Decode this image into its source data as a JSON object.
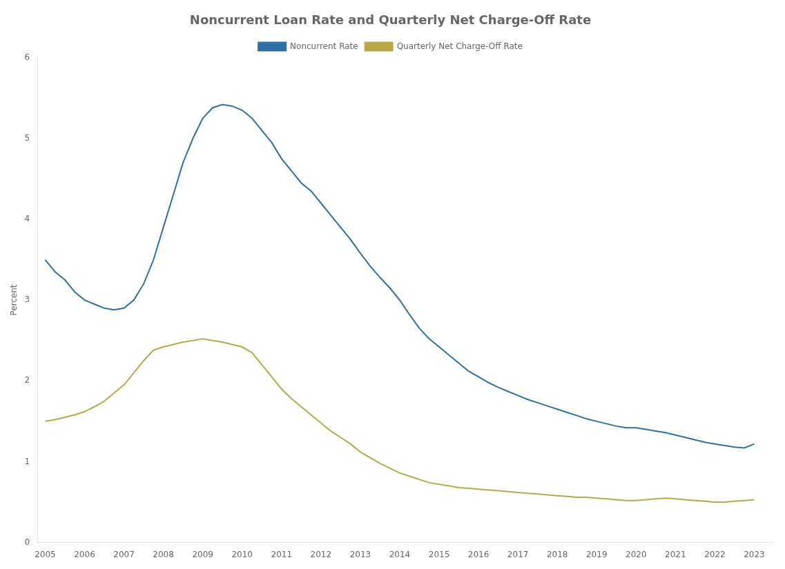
{
  "chart_data": {
    "type": "line",
    "title": "Noncurrent Loan Rate and Quarterly Net Charge-Off Rate",
    "y_label": "Percent",
    "x": [
      2005.0,
      2005.25,
      2005.5,
      2005.75,
      2006.0,
      2006.25,
      2006.5,
      2006.75,
      2007.0,
      2007.25,
      2007.5,
      2007.75,
      2008.0,
      2008.25,
      2008.5,
      2008.75,
      2009.0,
      2009.25,
      2009.5,
      2009.75,
      2010.0,
      2010.25,
      2010.5,
      2010.75,
      2011.0,
      2011.25,
      2011.5,
      2011.75,
      2012.0,
      2012.25,
      2012.5,
      2012.75,
      2013.0,
      2013.25,
      2013.5,
      2013.75,
      2014.0,
      2014.25,
      2014.5,
      2014.75,
      2015.0,
      2015.25,
      2015.5,
      2015.75,
      2016.0,
      2016.25,
      2016.5,
      2016.75,
      2017.0,
      2017.25,
      2017.5,
      2017.75,
      2018.0,
      2018.25,
      2018.5,
      2018.75,
      2019.0,
      2019.25,
      2019.5,
      2019.75,
      2020.0,
      2020.25,
      2020.5,
      2020.75,
      2021.0,
      2021.25,
      2021.5,
      2021.75,
      2022.0,
      2022.25,
      2022.5,
      2022.75,
      2023.0
    ],
    "series": [
      {
        "name": "Noncurrent Rate",
        "color": "#2e6fa3",
        "values": [
          3.5,
          3.35,
          3.25,
          3.1,
          3.0,
          2.95,
          2.9,
          2.88,
          2.9,
          3.0,
          3.2,
          3.5,
          3.9,
          4.3,
          4.7,
          5.0,
          5.25,
          5.38,
          5.42,
          5.4,
          5.35,
          5.25,
          5.1,
          4.95,
          4.75,
          4.6,
          4.45,
          4.35,
          4.2,
          4.05,
          3.9,
          3.75,
          3.58,
          3.42,
          3.28,
          3.15,
          3.0,
          2.82,
          2.65,
          2.52,
          2.42,
          2.32,
          2.22,
          2.12,
          2.05,
          1.98,
          1.92,
          1.87,
          1.82,
          1.77,
          1.73,
          1.69,
          1.65,
          1.61,
          1.57,
          1.53,
          1.5,
          1.47,
          1.44,
          1.42,
          1.42,
          1.4,
          1.38,
          1.36,
          1.33,
          1.3,
          1.27,
          1.24,
          1.22,
          1.2,
          1.18,
          1.17,
          1.22
        ]
      },
      {
        "name": "Quarterly Net Charge-Off Rate",
        "color": "#b8a84a",
        "values": [
          1.5,
          1.52,
          1.55,
          1.58,
          1.62,
          1.68,
          1.75,
          1.85,
          1.95,
          2.1,
          2.25,
          2.38,
          2.42,
          2.45,
          2.48,
          2.5,
          2.52,
          2.5,
          2.48,
          2.45,
          2.42,
          2.35,
          2.2,
          2.05,
          1.9,
          1.78,
          1.68,
          1.58,
          1.48,
          1.38,
          1.3,
          1.22,
          1.12,
          1.05,
          0.98,
          0.92,
          0.86,
          0.82,
          0.78,
          0.74,
          0.72,
          0.7,
          0.68,
          0.67,
          0.66,
          0.65,
          0.64,
          0.63,
          0.62,
          0.61,
          0.6,
          0.59,
          0.58,
          0.57,
          0.56,
          0.56,
          0.55,
          0.54,
          0.53,
          0.52,
          0.52,
          0.53,
          0.54,
          0.55,
          0.54,
          0.53,
          0.52,
          0.51,
          0.5,
          0.5,
          0.51,
          0.52,
          0.53
        ]
      }
    ],
    "xlim": [
      2004.8,
      2023.5
    ],
    "xticks": [
      2005,
      2006,
      2007,
      2008,
      2009,
      2010,
      2011,
      2012,
      2013,
      2014,
      2015,
      2016,
      2017,
      2018,
      2019,
      2020,
      2021,
      2022,
      2023
    ],
    "ylim": [
      0,
      6
    ],
    "yticks": [
      0,
      1,
      2,
      3,
      4,
      5,
      6
    ],
    "grid": false,
    "legend": "top"
  }
}
